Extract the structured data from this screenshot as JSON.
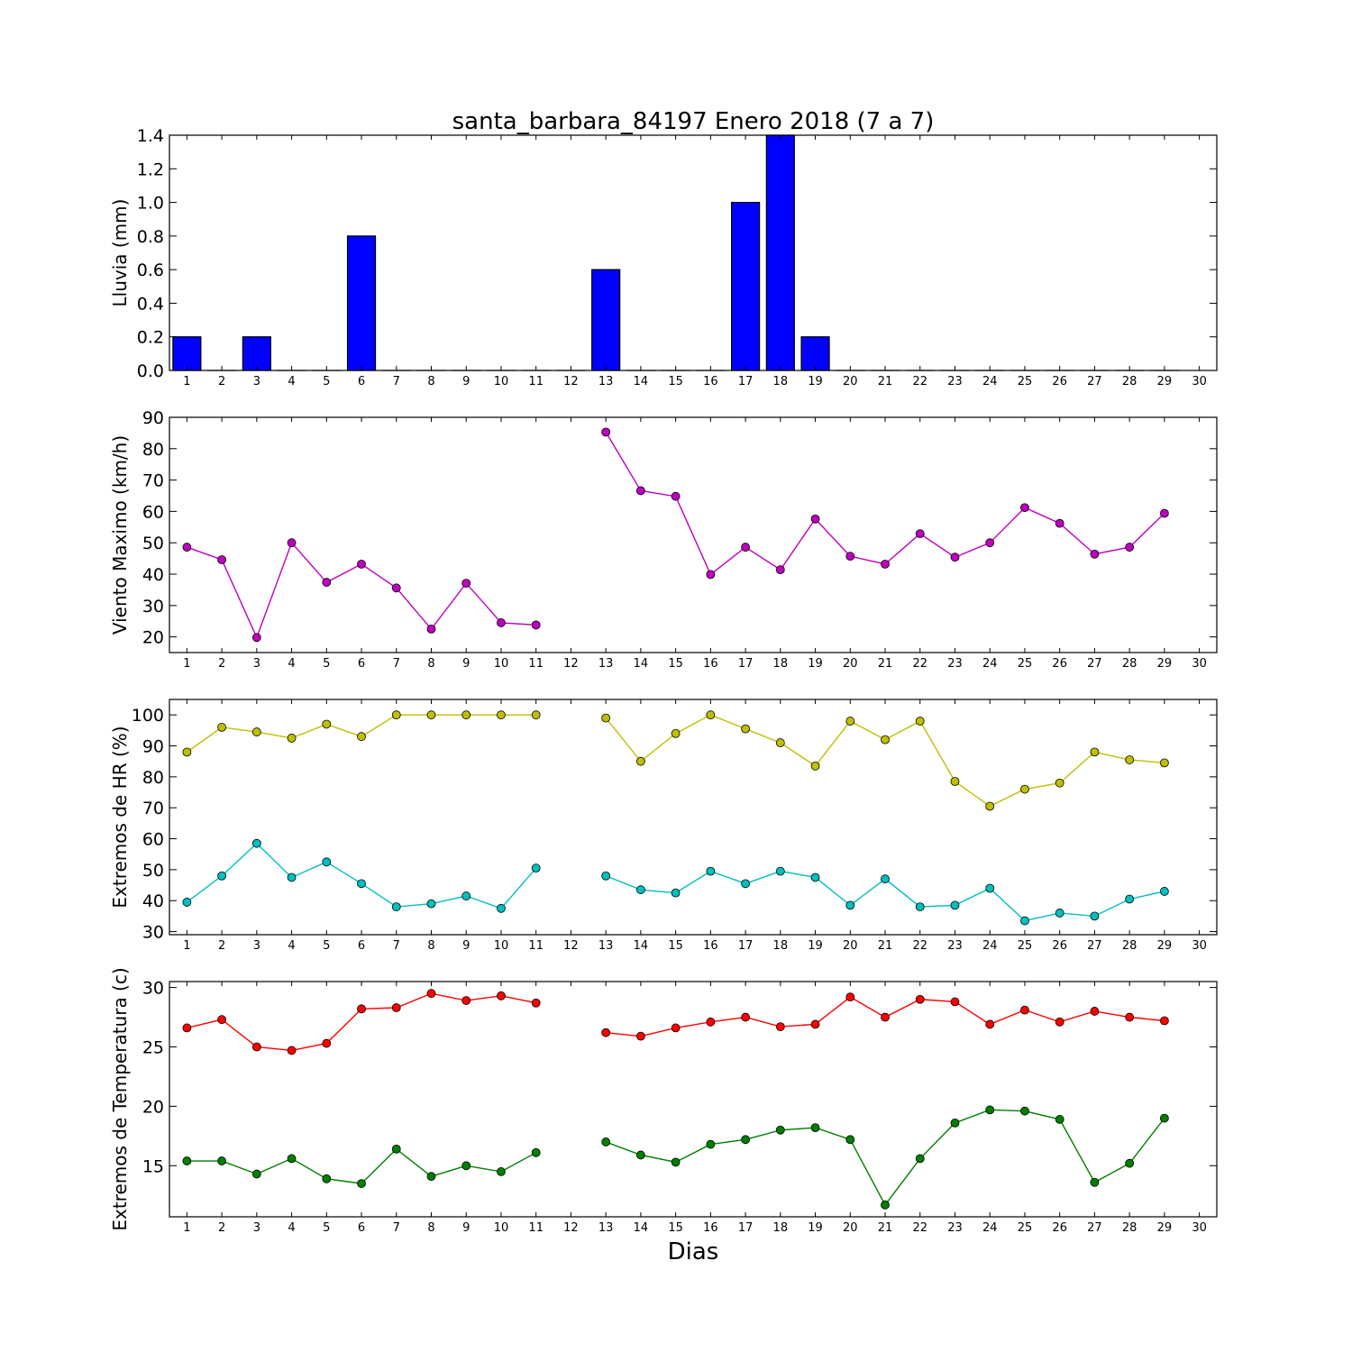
{
  "figure": {
    "title": "santa_barbara_84197 Enero 2018  (7 a 7)",
    "xlabel": "Dias"
  },
  "chart_data": [
    {
      "type": "bar",
      "ylabel": "Lluvia (mm)",
      "ylim": [
        0,
        1.4
      ],
      "yticks": [
        0.0,
        0.2,
        0.4,
        0.6,
        0.8,
        1.0,
        1.2,
        1.4
      ],
      "ytick_decimals": 1,
      "xlim": [
        0.5,
        30.5
      ],
      "xticks": [
        1,
        2,
        3,
        4,
        5,
        6,
        7,
        8,
        9,
        10,
        11,
        12,
        13,
        14,
        15,
        16,
        17,
        18,
        19,
        20,
        21,
        22,
        23,
        24,
        25,
        26,
        27,
        28,
        29,
        30
      ],
      "grid": false,
      "series": [
        {
          "color": "#0000ff",
          "x": [
            1,
            2,
            3,
            4,
            5,
            6,
            7,
            8,
            9,
            10,
            11,
            12,
            13,
            14,
            15,
            16,
            17,
            18,
            19,
            20,
            21,
            22,
            23,
            24,
            25,
            26,
            27,
            28,
            29
          ],
          "values": [
            0.2,
            0,
            0.2,
            0,
            0,
            0.8,
            0,
            0,
            0,
            0,
            0,
            0,
            0.6,
            0,
            0,
            0,
            1.0,
            1.4,
            0.2,
            0,
            0,
            0,
            0,
            0,
            0,
            0,
            0,
            0,
            0
          ]
        }
      ]
    },
    {
      "type": "line",
      "ylabel": "Viento Maximo (km/h)",
      "ylim": [
        15,
        90
      ],
      "yticks": [
        20,
        30,
        40,
        50,
        60,
        70,
        80,
        90
      ],
      "ytick_decimals": 0,
      "xlim": [
        0.5,
        30.5
      ],
      "xticks": [
        1,
        2,
        3,
        4,
        5,
        6,
        7,
        8,
        9,
        10,
        11,
        12,
        13,
        14,
        15,
        16,
        17,
        18,
        19,
        20,
        21,
        22,
        23,
        24,
        25,
        26,
        27,
        28,
        29,
        30
      ],
      "grid": false,
      "series": [
        {
          "color": "#bf00bf",
          "x": [
            1,
            2,
            3,
            4,
            5,
            6,
            7,
            8,
            9,
            10,
            11,
            12,
            13,
            14,
            15,
            16,
            17,
            18,
            19,
            20,
            21,
            22,
            23,
            24,
            25,
            26,
            27,
            28,
            29
          ],
          "values": [
            48.6,
            44.6,
            19.8,
            50.0,
            37.4,
            43.2,
            35.6,
            22.5,
            37.1,
            24.5,
            23.8,
            null,
            85.3,
            66.6,
            64.8,
            39.9,
            48.6,
            41.4,
            57.6,
            45.7,
            43.2,
            52.9,
            45.4,
            50.0,
            61.2,
            56.2,
            46.4,
            48.6,
            59.4
          ]
        }
      ]
    },
    {
      "type": "line",
      "ylabel": "Extremos de HR (%)",
      "ylim": [
        29,
        105
      ],
      "yticks": [
        30,
        40,
        50,
        60,
        70,
        80,
        90,
        100
      ],
      "ytick_decimals": 0,
      "xlim": [
        0.5,
        30.5
      ],
      "xticks": [
        1,
        2,
        3,
        4,
        5,
        6,
        7,
        8,
        9,
        10,
        11,
        12,
        13,
        14,
        15,
        16,
        17,
        18,
        19,
        20,
        21,
        22,
        23,
        24,
        25,
        26,
        27,
        28,
        29,
        30
      ],
      "grid": false,
      "series": [
        {
          "color": "#bfbf00",
          "x": [
            1,
            2,
            3,
            4,
            5,
            6,
            7,
            8,
            9,
            10,
            11,
            12,
            13,
            14,
            15,
            16,
            17,
            18,
            19,
            20,
            21,
            22,
            23,
            24,
            25,
            26,
            27,
            28,
            29
          ],
          "values": [
            88,
            96,
            94.5,
            92.5,
            97,
            93,
            100,
            100,
            100,
            100,
            100,
            null,
            99,
            85,
            94,
            100,
            95.5,
            91,
            83.5,
            98,
            92,
            98,
            78.5,
            70.5,
            76,
            78,
            88,
            85.5,
            84.5
          ]
        },
        {
          "color": "#00bfbf",
          "x": [
            1,
            2,
            3,
            4,
            5,
            6,
            7,
            8,
            9,
            10,
            11,
            12,
            13,
            14,
            15,
            16,
            17,
            18,
            19,
            20,
            21,
            22,
            23,
            24,
            25,
            26,
            27,
            28,
            29
          ],
          "values": [
            39.5,
            48,
            58.5,
            47.5,
            52.5,
            45.5,
            38,
            39,
            41.5,
            37.5,
            50.5,
            null,
            48,
            43.5,
            42.5,
            49.5,
            45.5,
            49.5,
            47.5,
            38.5,
            47,
            38,
            38.5,
            44,
            33.5,
            36,
            35,
            40.5,
            43
          ]
        }
      ]
    },
    {
      "type": "line",
      "ylabel": "Extremos de Temperatura (c)",
      "ylim": [
        10.7,
        30.5
      ],
      "yticks": [
        15,
        20,
        25,
        30
      ],
      "ytick_decimals": 0,
      "xlim": [
        0.5,
        30.5
      ],
      "xticks": [
        1,
        2,
        3,
        4,
        5,
        6,
        7,
        8,
        9,
        10,
        11,
        12,
        13,
        14,
        15,
        16,
        17,
        18,
        19,
        20,
        21,
        22,
        23,
        24,
        25,
        26,
        27,
        28,
        29,
        30
      ],
      "grid": false,
      "series": [
        {
          "color": "#ff0000",
          "x": [
            1,
            2,
            3,
            4,
            5,
            6,
            7,
            8,
            9,
            10,
            11,
            12,
            13,
            14,
            15,
            16,
            17,
            18,
            19,
            20,
            21,
            22,
            23,
            24,
            25,
            26,
            27,
            28,
            29
          ],
          "values": [
            26.6,
            27.3,
            25.0,
            24.7,
            25.3,
            28.2,
            28.3,
            29.5,
            28.9,
            29.3,
            28.7,
            null,
            26.2,
            25.9,
            26.6,
            27.1,
            27.5,
            26.7,
            26.9,
            29.2,
            27.5,
            29.0,
            28.8,
            26.9,
            28.1,
            27.1,
            28.0,
            27.5,
            27.2
          ]
        },
        {
          "color": "#007f00",
          "x": [
            1,
            2,
            3,
            4,
            5,
            6,
            7,
            8,
            9,
            10,
            11,
            12,
            13,
            14,
            15,
            16,
            17,
            18,
            19,
            20,
            21,
            22,
            23,
            24,
            25,
            26,
            27,
            28,
            29
          ],
          "values": [
            15.4,
            15.4,
            14.3,
            15.6,
            13.9,
            13.5,
            16.4,
            14.1,
            15.0,
            14.5,
            16.1,
            null,
            17.0,
            15.9,
            15.3,
            16.8,
            17.2,
            18.0,
            18.2,
            17.2,
            11.7,
            15.6,
            18.6,
            19.7,
            19.6,
            18.9,
            13.6,
            15.2,
            19.0
          ]
        }
      ]
    }
  ]
}
